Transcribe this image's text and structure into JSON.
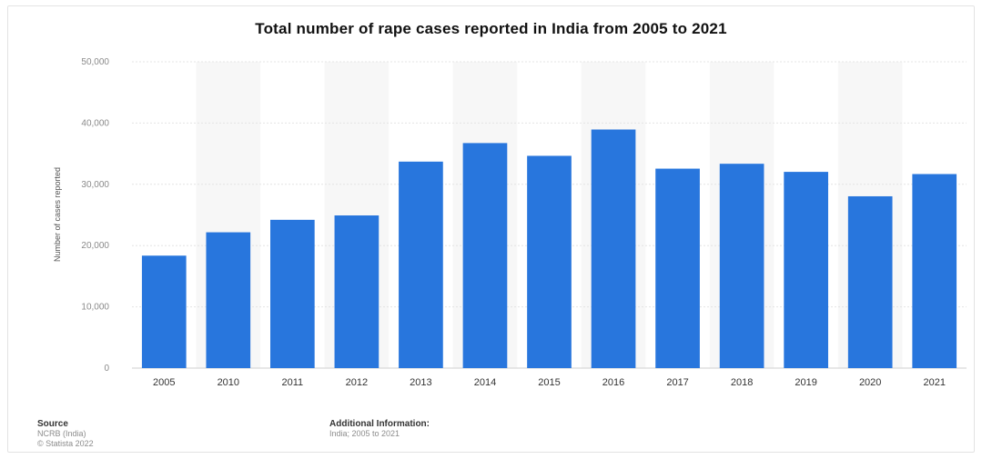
{
  "chart_data": {
    "type": "bar",
    "title": "Total number of rape cases reported in India from 2005 to 2021",
    "ylabel": "Number of cases reported",
    "xlabel": "",
    "categories": [
      "2005",
      "2010",
      "2011",
      "2012",
      "2013",
      "2014",
      "2015",
      "2016",
      "2017",
      "2018",
      "2019",
      "2020",
      "2021"
    ],
    "values": [
      18359,
      22172,
      24206,
      24923,
      33707,
      36735,
      34651,
      38947,
      32559,
      33356,
      32033,
      28046,
      31677
    ],
    "ylim": [
      0,
      50000
    ],
    "yticks": [
      0,
      10000,
      20000,
      30000,
      40000,
      50000
    ],
    "ytick_labels": [
      "0",
      "10,000",
      "20,000",
      "30,000",
      "40,000",
      "50,000"
    ],
    "grid": true,
    "bar_color": "#2876dd",
    "legend": "none"
  },
  "footer": {
    "source_heading": "Source",
    "source_lines": [
      "NCRB (India)",
      "© Statista 2022"
    ],
    "additional_heading": "Additional Information:",
    "additional_text": "India; 2005 to 2021"
  }
}
